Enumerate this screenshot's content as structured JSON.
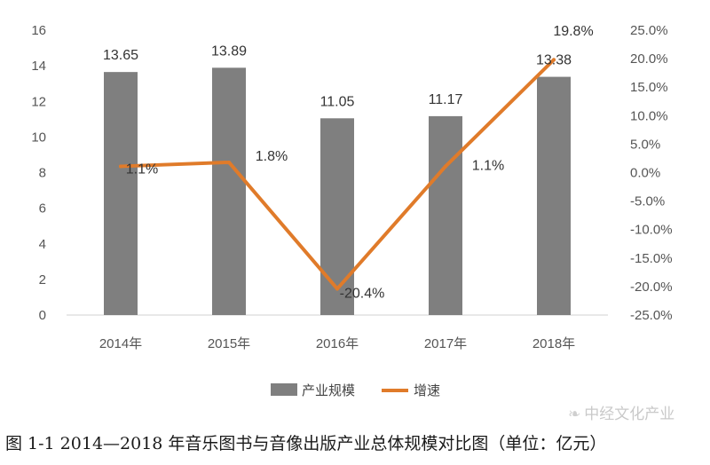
{
  "chart_data": {
    "type": "bar",
    "categories": [
      "2014年",
      "2015年",
      "2016年",
      "2017年",
      "2018年"
    ],
    "series": [
      {
        "name": "产业规模",
        "type": "bar",
        "axis": "left",
        "values": [
          13.65,
          13.89,
          11.05,
          11.17,
          13.38
        ],
        "color": "#7f7f7f"
      },
      {
        "name": "增速",
        "type": "line",
        "axis": "right",
        "values": [
          1.1,
          1.8,
          -20.4,
          1.1,
          19.8
        ],
        "color": "#e07b2a"
      }
    ],
    "bar_labels": [
      "13.65",
      "13.89",
      "11.05",
      "11.17",
      "13.38"
    ],
    "line_labels": [
      "1.1%",
      "1.8%",
      "-20.4%",
      "1.1%",
      "19.8%"
    ],
    "y_left": {
      "min": 0,
      "max": 16,
      "step": 2,
      "ticks": [
        "0",
        "2",
        "4",
        "6",
        "8",
        "10",
        "12",
        "14",
        "16"
      ]
    },
    "y_right": {
      "min": -25,
      "max": 25,
      "step": 5,
      "ticks": [
        "-25.0%",
        "-20.0%",
        "-15.0%",
        "-10.0%",
        "-5.0%",
        "0.0%",
        "5.0%",
        "10.0%",
        "15.0%",
        "20.0%",
        "25.0%"
      ]
    },
    "grid": false,
    "legend": "bottom"
  },
  "caption": "图 1-1 2014—2018 年音乐图书与音像出版产业总体规模对比图（单位：亿元）",
  "watermark": "中经文化产业"
}
